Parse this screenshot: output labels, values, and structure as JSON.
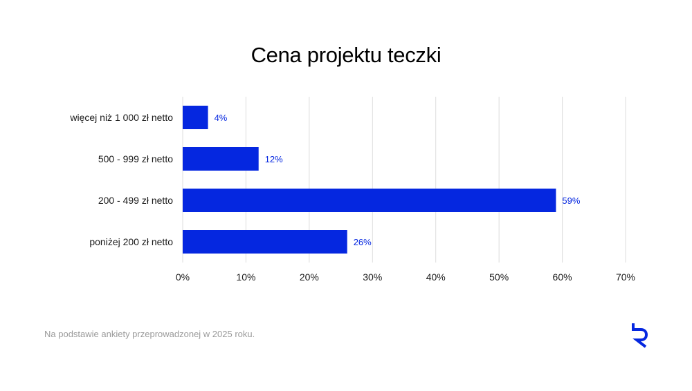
{
  "chart_data": {
    "type": "bar",
    "orientation": "horizontal",
    "title": "Cena projektu teczki",
    "categories": [
      "więcej niż 1 000 zł netto",
      "500 - 999 zł netto",
      "200 - 499 zł netto",
      "poniżej 200 zł netto"
    ],
    "values": [
      4,
      12,
      59,
      26
    ],
    "value_labels": [
      "4%",
      "12%",
      "59%",
      "26%"
    ],
    "xlim": [
      0,
      70
    ],
    "x_ticks": [
      0,
      10,
      20,
      30,
      40,
      50,
      60,
      70
    ],
    "x_tick_labels": [
      "0%",
      "10%",
      "20%",
      "30%",
      "40%",
      "50%",
      "60%",
      "70%"
    ],
    "grid": "vertical",
    "legend": "none"
  },
  "footer": {
    "note": "Na podstawie ankiety przeprowadzonej w 2025 roku."
  },
  "colors": {
    "bar": "#0527e0",
    "value_label": "#0527e0",
    "grid": "#dcdcdc",
    "logo": "#0527e0"
  },
  "icons": {
    "logo": "brand-r-logo-icon"
  }
}
